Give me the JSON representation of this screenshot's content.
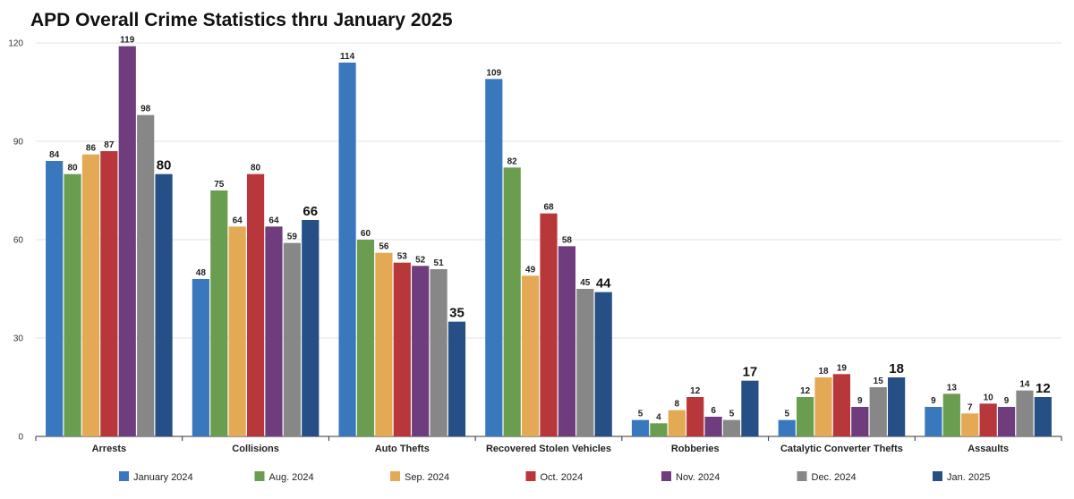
{
  "chart_data": {
    "type": "bar",
    "title": "APD Overall Crime Statistics thru January 2025",
    "xlabel": "",
    "ylabel": "",
    "ylim": [
      0,
      120
    ],
    "yticks": [
      0,
      30,
      60,
      90,
      120
    ],
    "grid": true,
    "legend_position": "bottom",
    "categories": [
      "Arrests",
      "Collisions",
      "Auto Thefts",
      "Recovered Stolen Vehicles",
      "Robberies",
      "Catalytic Converter Thefts",
      "Assaults"
    ],
    "series": [
      {
        "name": "January 2024",
        "color": "#3a78bd",
        "values": [
          84,
          48,
          114,
          109,
          5,
          5,
          9
        ]
      },
      {
        "name": "Aug. 2024",
        "color": "#6a9d4f",
        "values": [
          80,
          75,
          60,
          82,
          4,
          12,
          13
        ]
      },
      {
        "name": "Sep. 2024",
        "color": "#e4a955",
        "values": [
          86,
          64,
          56,
          49,
          8,
          18,
          7
        ]
      },
      {
        "name": "Oct. 2024",
        "color": "#b8373a",
        "values": [
          87,
          80,
          53,
          68,
          12,
          19,
          10
        ]
      },
      {
        "name": "Nov. 2024",
        "color": "#6f3c7e",
        "values": [
          119,
          64,
          52,
          58,
          6,
          9,
          9
        ]
      },
      {
        "name": "Dec. 2024",
        "color": "#878787",
        "values": [
          98,
          59,
          51,
          45,
          5,
          15,
          14
        ]
      },
      {
        "name": "Jan. 2025",
        "color": "#254f85",
        "values": [
          80,
          66,
          35,
          44,
          17,
          18,
          12
        ]
      }
    ],
    "highlight_series": "Jan. 2025"
  }
}
